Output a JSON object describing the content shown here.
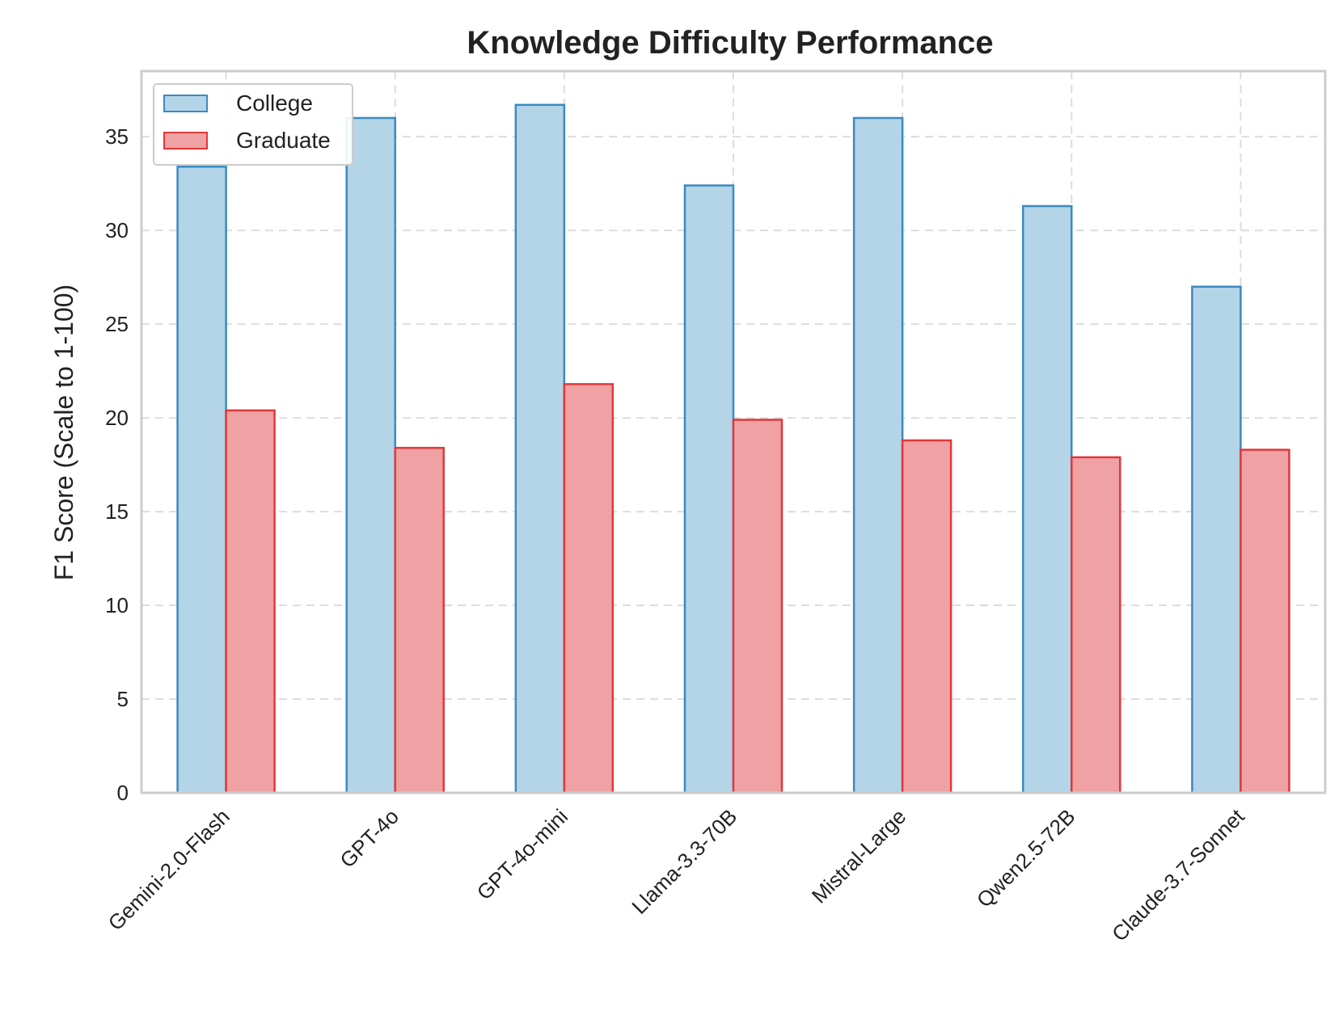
{
  "chart_data": {
    "type": "bar",
    "title": "Knowledge Difficulty Performance",
    "xlabel": "",
    "ylabel": "F1 Score (Scale to 1-100)",
    "ylim": [
      0,
      38.5
    ],
    "yticks": [
      0,
      5,
      10,
      15,
      20,
      25,
      30,
      35
    ],
    "grid": true,
    "legend_position": "top-left",
    "categories": [
      "Gemini-2.0-Flash",
      "GPT-4o",
      "GPT-4o-mini",
      "Llama-3.3-70B",
      "Mistral-Large",
      "Qwen2.5-72B",
      "Claude-3.7-Sonnet"
    ],
    "series": [
      {
        "name": "College",
        "values": [
          33.4,
          36.0,
          36.7,
          32.4,
          36.0,
          31.3,
          27.0
        ],
        "fill": "#b4d4e8",
        "stroke": "#3a8bc0"
      },
      {
        "name": "Graduate",
        "values": [
          20.4,
          18.4,
          21.8,
          19.9,
          18.8,
          17.9,
          18.3
        ],
        "fill": "#f0a1a3",
        "stroke": "#e0383a"
      }
    ]
  }
}
